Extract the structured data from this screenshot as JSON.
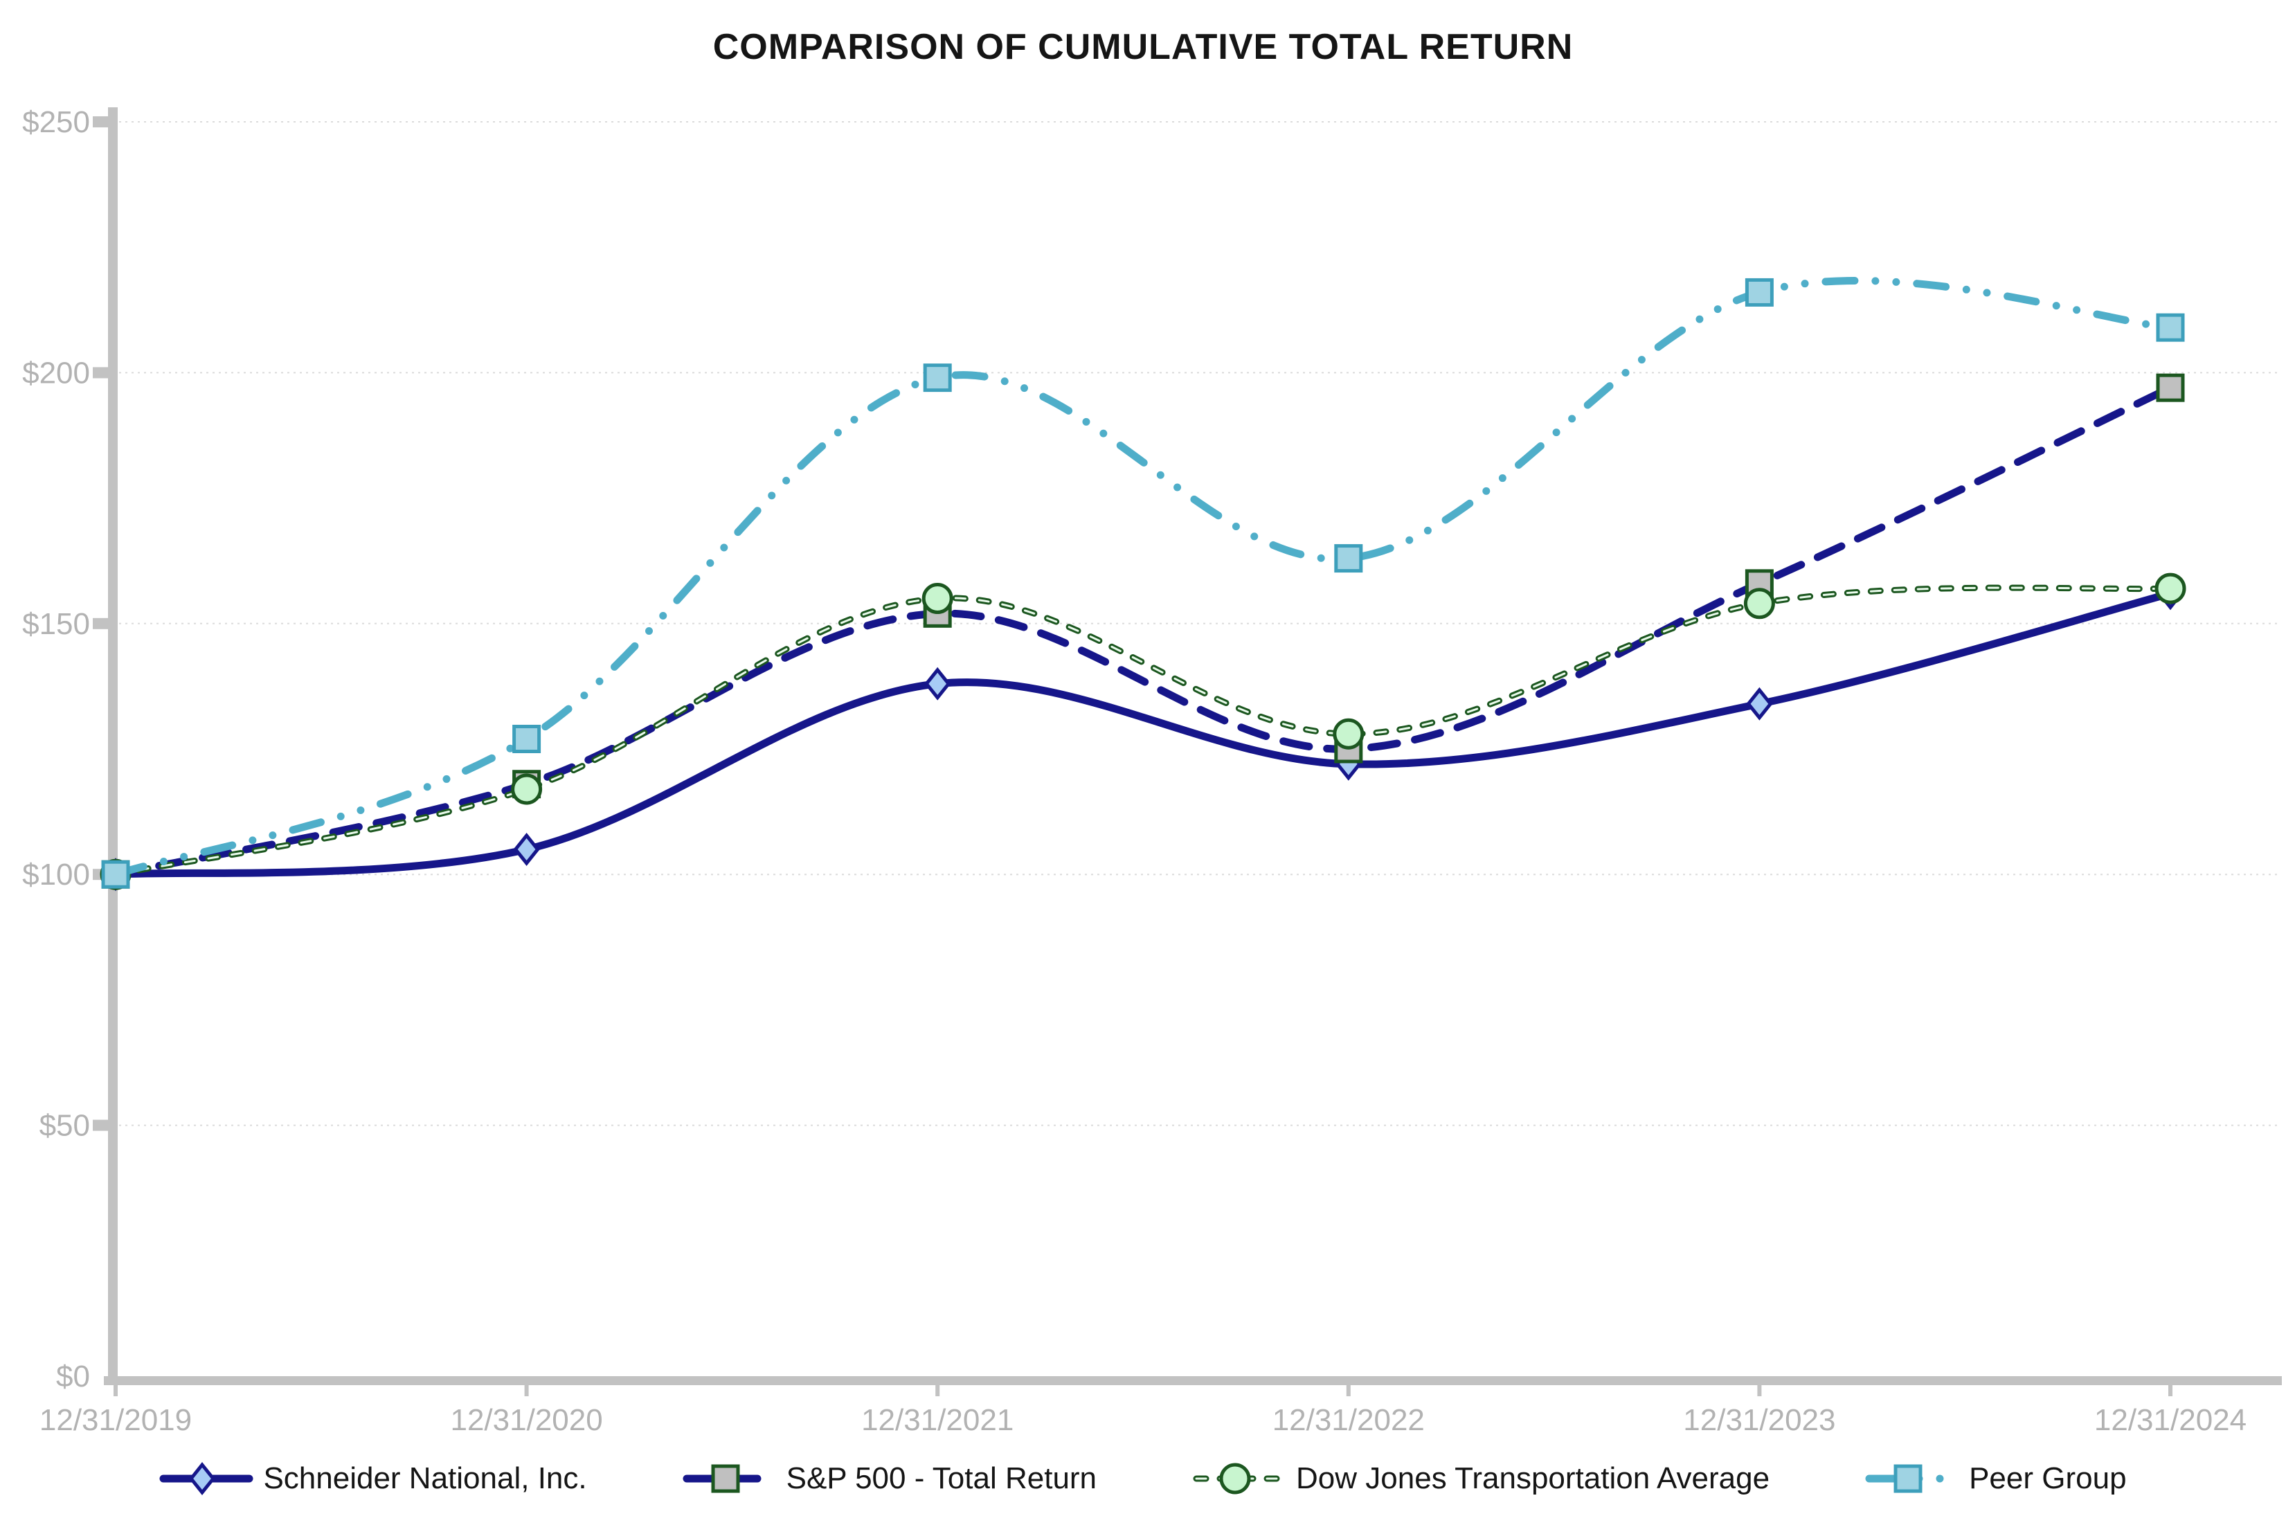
{
  "title": "COMPARISON OF CUMULATIVE TOTAL RETURN",
  "chart_data": {
    "type": "line",
    "title": "COMPARISON OF CUMULATIVE TOTAL RETURN",
    "categories": [
      "12/31/2019",
      "12/31/2020",
      "12/31/2021",
      "12/31/2022",
      "12/31/2023",
      "12/31/2024"
    ],
    "y_ticks": [
      "$0",
      "$50",
      "$100",
      "$150",
      "$200",
      "$250"
    ],
    "ylim": [
      0,
      250
    ],
    "y_step": 50,
    "grid": "horizontal-dotted",
    "legend_position": "bottom",
    "xlabel": "",
    "ylabel": "",
    "series": [
      {
        "name": "Schneider National, Inc.",
        "values": [
          100,
          105,
          138,
          122,
          134,
          156
        ],
        "line_color": "#16168A",
        "line_style": "solid",
        "marker": "diamond",
        "marker_fill": "#A7CBF5",
        "marker_stroke": "#16168A"
      },
      {
        "name": "S&P 500 - Total Return",
        "values": [
          100,
          118,
          152,
          125,
          158,
          197
        ],
        "line_color": "#16168A",
        "line_style": "long-dash",
        "marker": "square",
        "marker_fill": "#C0C0C0",
        "marker_stroke": "#1C5720"
      },
      {
        "name": "Dow Jones Transportation Average",
        "values": [
          100,
          117,
          155,
          128,
          154,
          157
        ],
        "line_color": "#1C5720",
        "line_style": "dash",
        "line_core_color": "#EAFBEC",
        "marker": "circle",
        "marker_fill": "#C8F5CF",
        "marker_stroke": "#1C5720"
      },
      {
        "name": "Peer Group",
        "values": [
          100,
          127,
          199,
          163,
          216,
          209
        ],
        "line_color": "#4FAEC9",
        "line_style": "dash-dot-dot",
        "marker": "square",
        "marker_fill": "#9FD3E3",
        "marker_stroke": "#3D9FBB"
      }
    ],
    "axis_color": "#C2C2C2",
    "grid_color": "#DBDBDB",
    "tick_label_color": "#B2B2B2",
    "title_color": "#151515"
  }
}
